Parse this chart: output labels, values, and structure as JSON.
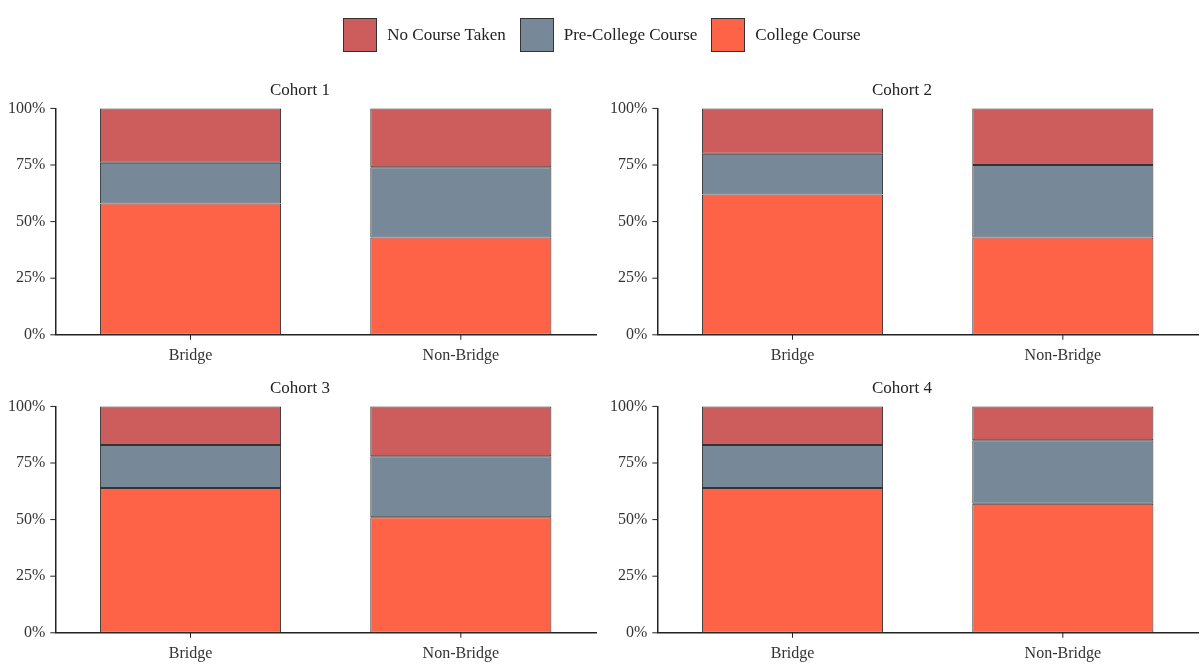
{
  "chart_data": [
    {
      "type": "bar",
      "title": "Cohort 1",
      "categories": [
        "Bridge",
        "Non-Bridge"
      ],
      "stacked": true,
      "legend": "top",
      "ylim": [
        0,
        100
      ],
      "yticks": [
        {
          "value": 0,
          "label": "0%"
        },
        {
          "value": 25,
          "label": "25%"
        },
        {
          "value": 50,
          "label": "50%"
        },
        {
          "value": 75,
          "label": "75%"
        },
        {
          "value": 100,
          "label": "100%"
        }
      ],
      "series": [
        {
          "name": "College Course",
          "color": "#ff6347",
          "values": [
            58,
            43
          ]
        },
        {
          "name": "Pre-College Course",
          "color": "#778899",
          "values": [
            18,
            31
          ]
        },
        {
          "name": "No Course Taken",
          "color": "#cd5c5c",
          "values": [
            24,
            26
          ]
        }
      ]
    },
    {
      "type": "bar",
      "title": "Cohort 2",
      "categories": [
        "Bridge",
        "Non-Bridge"
      ],
      "stacked": true,
      "ylim": [
        0,
        100
      ],
      "yticks": [
        {
          "value": 0,
          "label": "0%"
        },
        {
          "value": 25,
          "label": "25%"
        },
        {
          "value": 50,
          "label": "50%"
        },
        {
          "value": 75,
          "label": "75%"
        },
        {
          "value": 100,
          "label": "100%"
        }
      ],
      "series": [
        {
          "color": "#ff6347",
          "values": [
            62,
            43
          ]
        },
        {
          "color": "#778899",
          "values": [
            18,
            32
          ]
        },
        {
          "color": "#cd5c5c",
          "values": [
            20,
            25
          ]
        }
      ]
    },
    {
      "type": "bar",
      "title": "Cohort 3",
      "categories": [
        "Bridge",
        "Non-Bridge"
      ],
      "stacked": true,
      "ylim": [
        0,
        100
      ],
      "yticks": [
        {
          "value": 0,
          "label": "0%"
        },
        {
          "value": 25,
          "label": "25%"
        },
        {
          "value": 50,
          "label": "50%"
        },
        {
          "value": 75,
          "label": "75%"
        },
        {
          "value": 100,
          "label": "100%"
        }
      ],
      "series": [
        {
          "color": "#ff6347",
          "values": [
            64,
            51
          ]
        },
        {
          "color": "#778899",
          "values": [
            19,
            27
          ]
        },
        {
          "color": "#cd5c5c",
          "values": [
            17,
            22
          ]
        }
      ]
    },
    {
      "type": "bar",
      "title": "Cohort 4",
      "categories": [
        "Bridge",
        "Non-Bridge"
      ],
      "stacked": true,
      "ylim": [
        0,
        100
      ],
      "yticks": [
        {
          "value": 0,
          "label": "0%"
        },
        {
          "value": 25,
          "label": "25%"
        },
        {
          "value": 50,
          "label": "50%"
        },
        {
          "value": 75,
          "label": "75%"
        },
        {
          "value": 100,
          "label": "100%"
        }
      ],
      "series": [
        {
          "color": "#ff6347",
          "values": [
            64,
            57
          ]
        },
        {
          "color": "#778899",
          "values": [
            19,
            28
          ]
        },
        {
          "color": "#cd5c5c",
          "values": [
            17,
            15
          ]
        }
      ]
    }
  ]
}
